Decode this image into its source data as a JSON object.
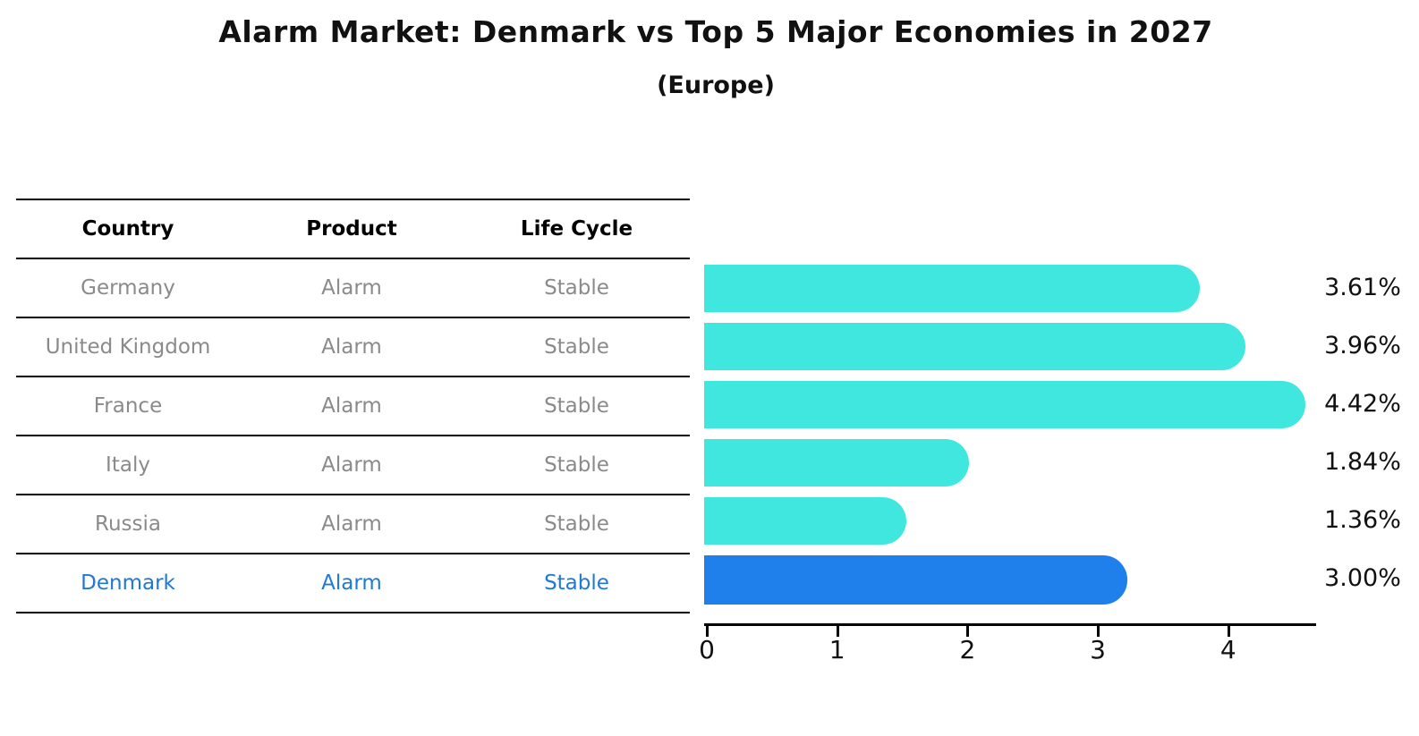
{
  "title": "Alarm Market: Denmark vs Top 5 Major Economies in 2027",
  "subtitle": "(Europe)",
  "table": {
    "columns": [
      "Country",
      "Product",
      "Life Cycle"
    ],
    "rows": [
      {
        "country": "Germany",
        "product": "Alarm",
        "life_cycle": "Stable",
        "highlight": false
      },
      {
        "country": "United Kingdom",
        "product": "Alarm",
        "life_cycle": "Stable",
        "highlight": false
      },
      {
        "country": "France",
        "product": "Alarm",
        "life_cycle": "Stable",
        "highlight": false
      },
      {
        "country": "Italy",
        "product": "Alarm",
        "life_cycle": "Stable",
        "highlight": false
      },
      {
        "country": "Russia",
        "product": "Alarm",
        "life_cycle": "Stable",
        "highlight": false
      },
      {
        "country": "Denmark",
        "product": "Alarm",
        "life_cycle": "Stable",
        "highlight": true
      }
    ]
  },
  "chart_data": {
    "type": "bar",
    "orientation": "horizontal",
    "title": "Alarm Market: Denmark vs Top 5 Major Economies in 2027 (Europe)",
    "categories": [
      "Germany",
      "United Kingdom",
      "France",
      "Italy",
      "Russia",
      "Denmark"
    ],
    "values": [
      3.61,
      3.96,
      4.42,
      1.84,
      1.36,
      3.0
    ],
    "value_labels": [
      "3.61%",
      "3.96%",
      "4.42%",
      "1.84%",
      "1.36%",
      "3.00%"
    ],
    "unit": "%",
    "xticks": [
      "0",
      "1",
      "2",
      "3",
      "4"
    ],
    "xlim": [
      0,
      4.65
    ],
    "grid": false,
    "legend": "none",
    "bar_color": "#40E7DF",
    "highlight_index": 5,
    "highlight_color": "#1F7FEB",
    "highlight_edge_style": "dotted"
  },
  "colors": {
    "row_text": "#8a8a8a",
    "header_text": "#000000",
    "highlight_text": "#1F78D8",
    "axis": "#000000"
  }
}
